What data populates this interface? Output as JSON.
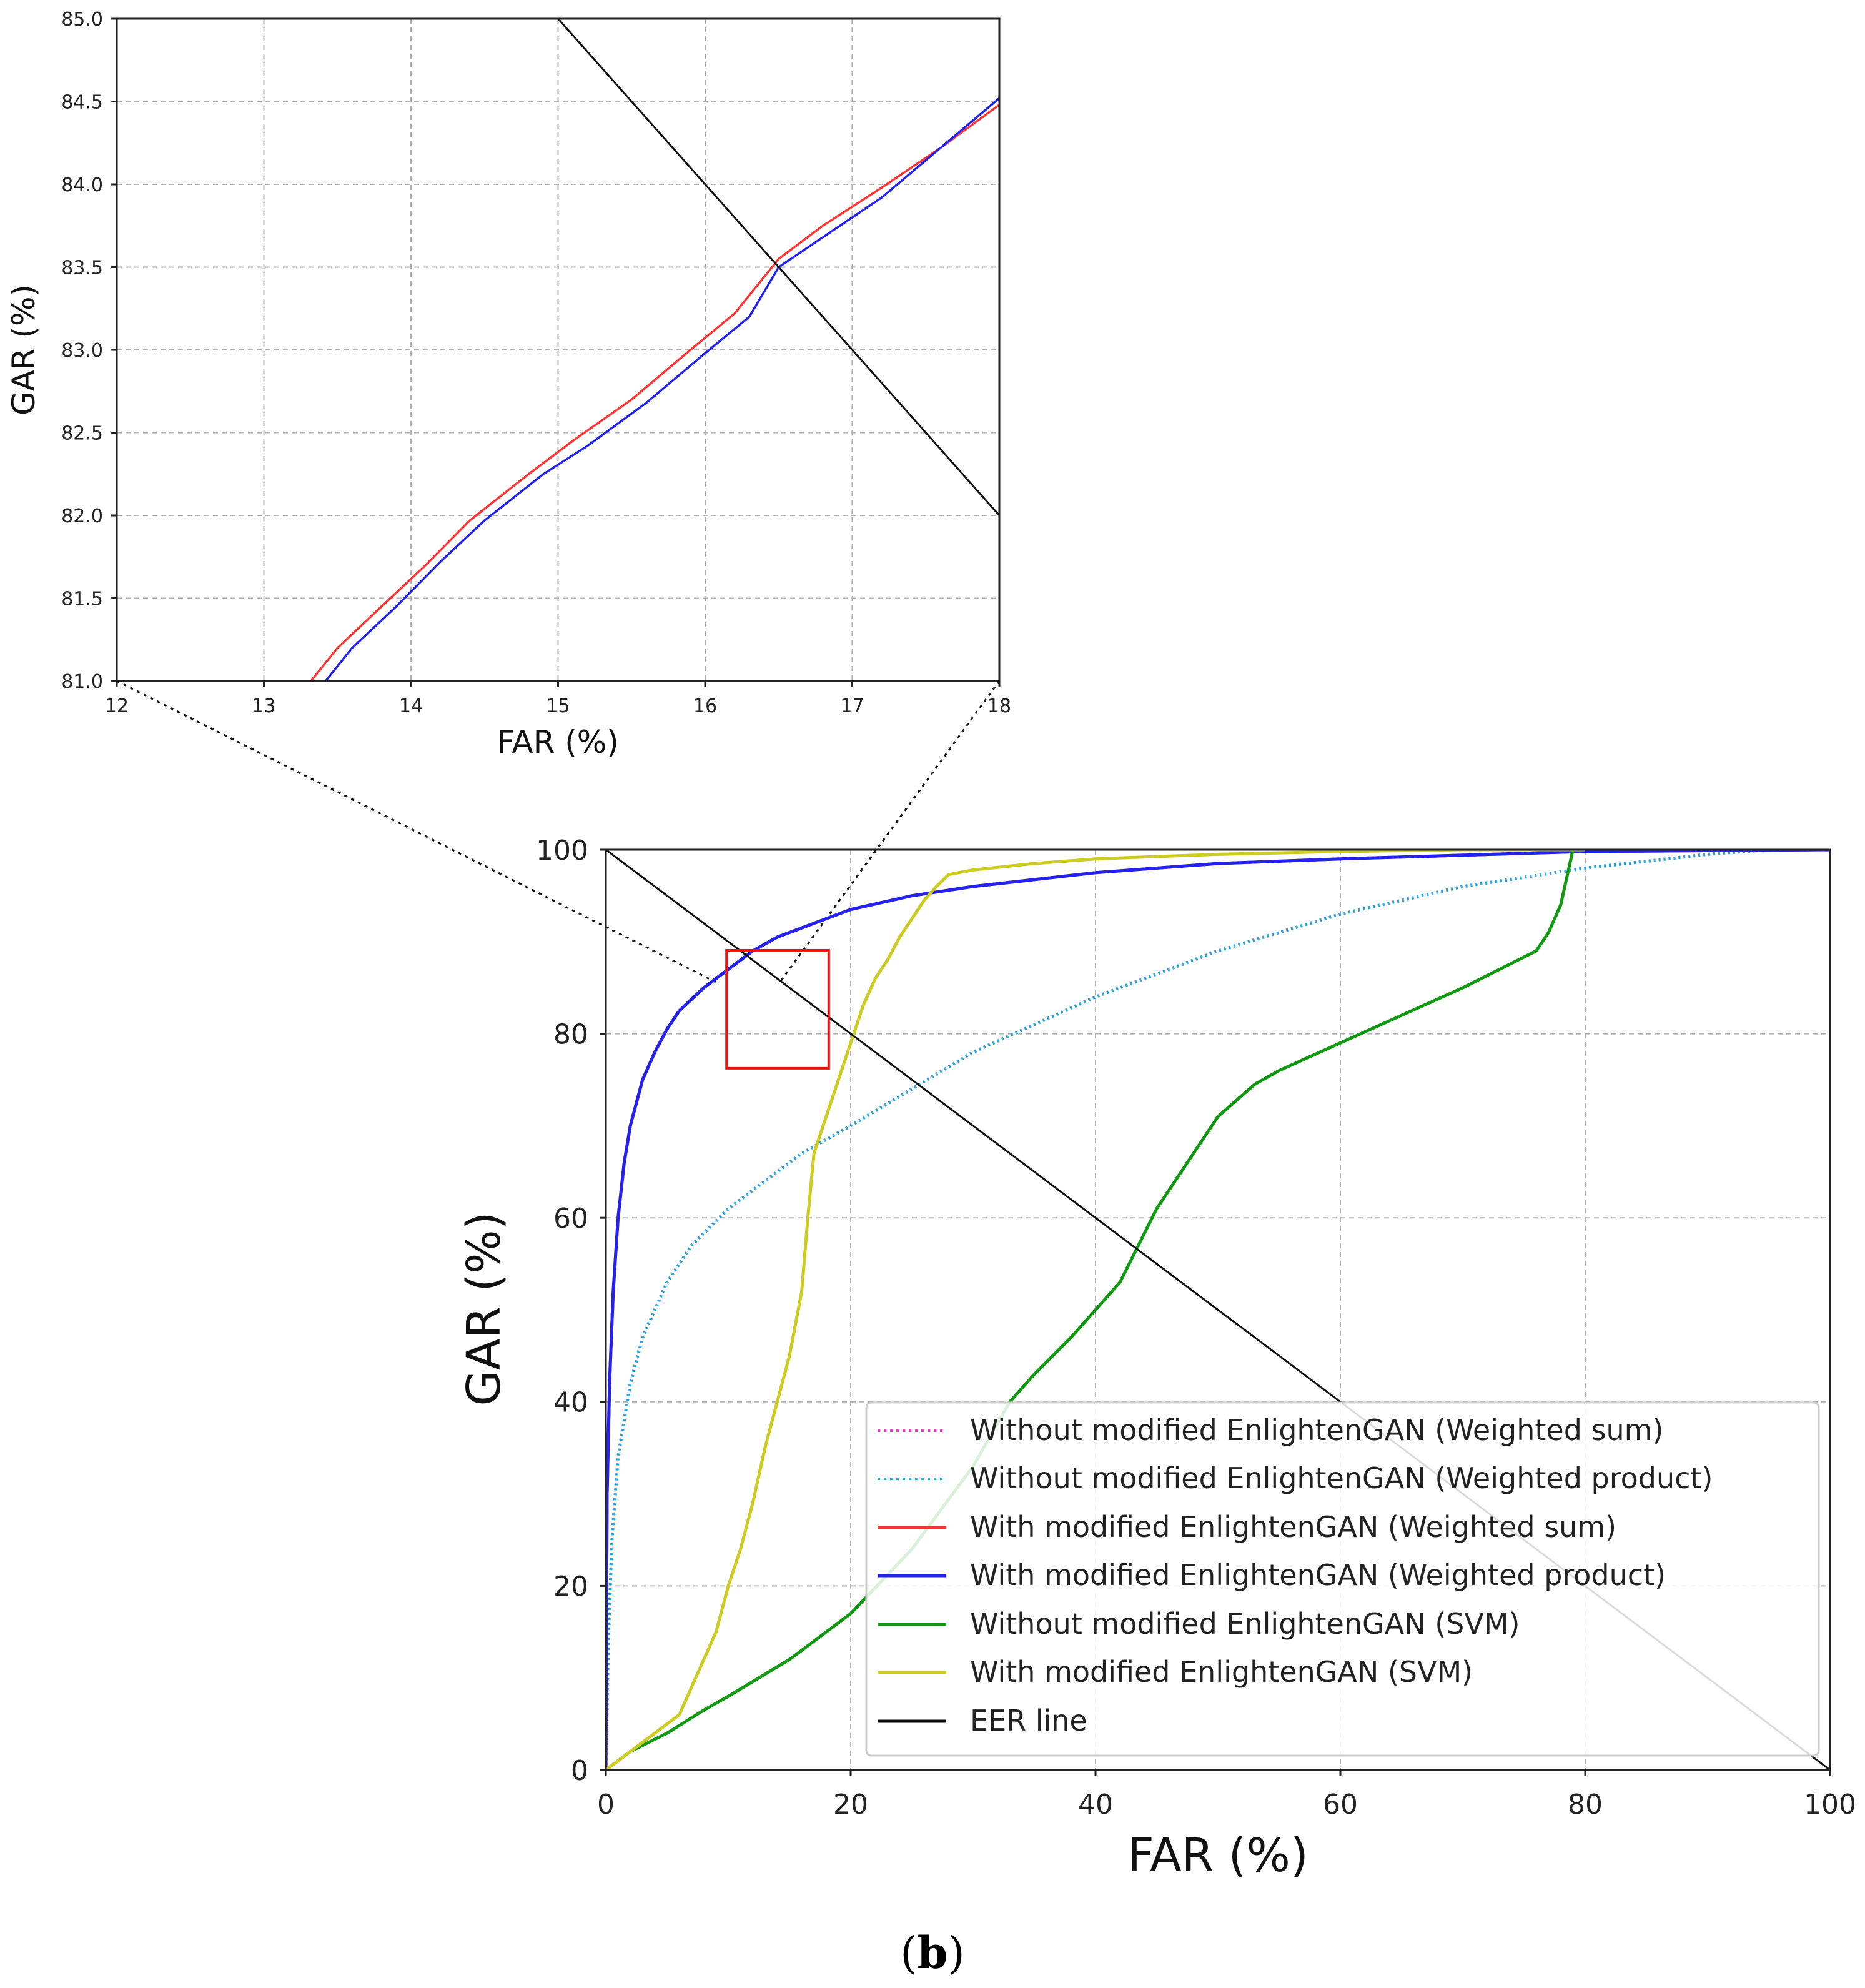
{
  "caption": {
    "paren_open": "(",
    "letter": "b",
    "paren_close": ")"
  },
  "colors": {
    "ws_without": "#ff33cc",
    "wp_without": "#22aadd",
    "ws_with": "#ff3333",
    "wp_with": "#2222ee",
    "svm_without": "#119911",
    "svm_with": "#cccc22",
    "eer": "#111111",
    "zoom_box": "#ee1111"
  },
  "chart_data": [
    {
      "id": "inset",
      "type": "line",
      "title": "",
      "xlabel": "FAR (%)",
      "ylabel": "GAR (%)",
      "xlim": [
        12,
        18
      ],
      "ylim": [
        81.0,
        85.0
      ],
      "xticks": [
        "12",
        "13",
        "14",
        "15",
        "16",
        "17",
        "18"
      ],
      "yticks": [
        "81.0",
        "81.5",
        "82.0",
        "82.5",
        "83.0",
        "83.5",
        "84.0",
        "84.5",
        "85.0"
      ],
      "grid": true,
      "series": [
        {
          "name": "With modified EnlightenGAN (Weighted sum)",
          "color_key": "ws_with",
          "x": [
            13.32,
            13.5,
            13.8,
            14.1,
            14.4,
            14.8,
            15.1,
            15.5,
            15.9,
            16.2,
            16.5,
            16.8,
            17.2,
            17.6,
            18.0
          ],
          "y": [
            81.0,
            81.2,
            81.45,
            81.7,
            81.97,
            82.25,
            82.45,
            82.7,
            83.0,
            83.22,
            83.55,
            83.75,
            83.98,
            84.22,
            84.48
          ]
        },
        {
          "name": "With modified EnlightenGAN (Weighted product)",
          "color_key": "wp_with",
          "x": [
            13.42,
            13.6,
            13.9,
            14.2,
            14.5,
            14.9,
            15.2,
            15.6,
            16.0,
            16.3,
            16.5,
            16.8,
            17.2,
            17.6,
            18.0
          ],
          "y": [
            81.0,
            81.2,
            81.45,
            81.72,
            81.97,
            82.25,
            82.42,
            82.68,
            82.98,
            83.2,
            83.5,
            83.68,
            83.92,
            84.22,
            84.52
          ]
        },
        {
          "name": "EER line",
          "color_key": "eer",
          "x": [
            15.0,
            18.0
          ],
          "y": [
            85.0,
            82.0
          ]
        }
      ]
    },
    {
      "id": "main",
      "type": "line",
      "title": "",
      "xlabel": "FAR (%)",
      "ylabel": "GAR (%)",
      "xlim": [
        0,
        100
      ],
      "ylim": [
        0,
        100
      ],
      "xticks": [
        "0",
        "20",
        "40",
        "60",
        "80",
        "100"
      ],
      "yticks": [
        "0",
        "20",
        "40",
        "60",
        "80",
        "100"
      ],
      "grid": true,
      "legend_position": "lower-right",
      "zoom_region": {
        "x": [
          12,
          18
        ],
        "y": [
          81,
          85
        ]
      },
      "series": [
        {
          "name": "Without modified EnlightenGAN (Weighted sum)",
          "color_key": "ws_without",
          "style": "dotted",
          "x": [
            0,
            0.2,
            0.5,
            1,
            2,
            3,
            5,
            7,
            10,
            13,
            16,
            20,
            25,
            30,
            35,
            40,
            50,
            60,
            70,
            80,
            90,
            95,
            100
          ],
          "y": [
            0,
            14,
            25,
            34,
            42,
            47,
            53,
            57,
            61,
            64,
            67,
            70,
            74,
            78,
            81,
            84,
            89,
            93,
            96,
            98,
            99.5,
            100,
            100
          ]
        },
        {
          "name": "Without modified EnlightenGAN (Weighted product)",
          "color_key": "wp_without",
          "style": "dotted",
          "x": [
            0,
            0.2,
            0.5,
            1,
            2,
            3,
            5,
            7,
            10,
            13,
            16,
            20,
            25,
            30,
            35,
            40,
            50,
            60,
            70,
            80,
            90,
            95,
            100
          ],
          "y": [
            0,
            14,
            25,
            34,
            42,
            47,
            53,
            57,
            61,
            64,
            67,
            70,
            74,
            78,
            81,
            84,
            89,
            93,
            96,
            98,
            99.5,
            100,
            100
          ]
        },
        {
          "name": "With modified EnlightenGAN (Weighted sum)",
          "color_key": "ws_with",
          "style": "solid",
          "x": [
            0,
            0.1,
            0.3,
            0.6,
            1,
            1.5,
            2,
            3,
            4,
            5,
            6,
            8,
            10,
            12,
            14,
            17,
            20,
            25,
            30,
            40,
            50,
            60,
            80,
            100
          ],
          "y": [
            0,
            30,
            42,
            52,
            60,
            66,
            70,
            75,
            78,
            80.5,
            82.5,
            85,
            87,
            89,
            90.5,
            92,
            93.5,
            95,
            96,
            97.5,
            98.5,
            99,
            99.8,
            100
          ]
        },
        {
          "name": "With modified EnlightenGAN (Weighted product)",
          "color_key": "wp_with",
          "style": "solid",
          "x": [
            0,
            0.1,
            0.3,
            0.6,
            1,
            1.5,
            2,
            3,
            4,
            5,
            6,
            8,
            10,
            12,
            14,
            17,
            20,
            25,
            30,
            40,
            50,
            60,
            80,
            100
          ],
          "y": [
            0,
            30,
            42,
            52,
            60,
            66,
            70,
            75,
            78,
            80.5,
            82.5,
            85,
            87,
            89,
            90.5,
            92,
            93.5,
            95,
            96,
            97.5,
            98.5,
            99,
            99.8,
            100
          ]
        },
        {
          "name": "Without modified EnlightenGAN (SVM)",
          "color_key": "svm_without",
          "style": "solid",
          "x": [
            0,
            2,
            5,
            8,
            10,
            15,
            20,
            25,
            30,
            33,
            35,
            38,
            40,
            42,
            45,
            48,
            50,
            53,
            55,
            60,
            65,
            70,
            73,
            76,
            77,
            78,
            78.5,
            79
          ],
          "y": [
            0,
            2,
            4,
            6.5,
            8,
            12,
            17,
            24,
            33,
            40,
            43,
            47,
            50,
            53,
            61,
            67,
            71,
            74.5,
            76,
            79,
            82,
            85,
            87,
            89,
            91,
            94,
            97,
            100
          ]
        },
        {
          "name": "With modified EnlightenGAN (SVM)",
          "color_key": "svm_with",
          "style": "solid",
          "x": [
            0,
            3,
            6,
            7,
            8,
            9,
            10,
            11,
            12,
            13,
            14,
            15,
            16,
            16.5,
            17,
            18,
            19,
            20,
            21,
            22,
            23,
            24,
            25,
            26,
            27,
            28,
            30,
            35,
            40,
            50,
            60,
            70,
            80
          ],
          "y": [
            0,
            3,
            6,
            9,
            12,
            15,
            20,
            24,
            29,
            35,
            40,
            45,
            52,
            60,
            67,
            71,
            75,
            79,
            83,
            86,
            88,
            90.5,
            92.5,
            94.5,
            96,
            97.3,
            97.8,
            98.5,
            99,
            99.5,
            99.8,
            100,
            100
          ]
        },
        {
          "name": "EER line",
          "color_key": "eer",
          "style": "solid",
          "x": [
            0,
            100
          ],
          "y": [
            100,
            0
          ]
        }
      ]
    }
  ]
}
